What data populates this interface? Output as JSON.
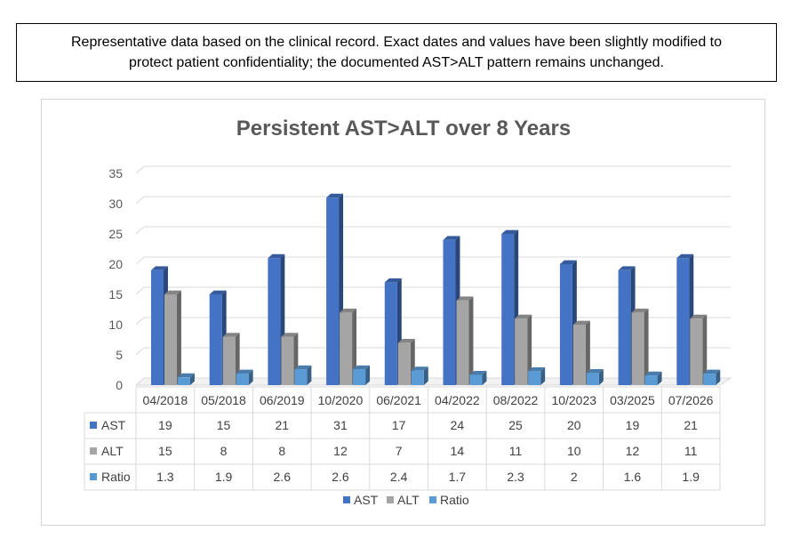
{
  "note": {
    "line1": "Representative data based on the clinical record. Exact dates and values have been slightly modified to",
    "line2": "protect patient confidentiality; the documented AST>ALT pattern remains unchanged."
  },
  "chart_data": {
    "type": "bar",
    "title": "Persistent AST>ALT over 8 Years",
    "xlabel": "",
    "ylabel": "",
    "ylim": [
      0,
      35
    ],
    "yticks": [
      0,
      5,
      10,
      15,
      20,
      25,
      30,
      35
    ],
    "grid": true,
    "legend": "bottom",
    "data_table": true,
    "categories": [
      "04/2018",
      "05/2018",
      "06/2019",
      "10/2020",
      "06/2021",
      "04/2022",
      "08/2022",
      "10/2023",
      "03/2025",
      "07/2026"
    ],
    "series": [
      {
        "name": "AST",
        "color": "#4472C4",
        "values": [
          19,
          15,
          21,
          31,
          17,
          24,
          25,
          20,
          19,
          21
        ]
      },
      {
        "name": "ALT",
        "color": "#A5A5A5",
        "values": [
          15,
          8,
          8,
          12,
          7,
          14,
          11,
          10,
          12,
          11
        ]
      },
      {
        "name": "Ratio",
        "color": "#5B9BD5",
        "values": [
          1.3,
          1.9,
          2.6,
          2.6,
          2.4,
          1.7,
          2.3,
          2,
          1.6,
          1.9
        ]
      }
    ]
  }
}
